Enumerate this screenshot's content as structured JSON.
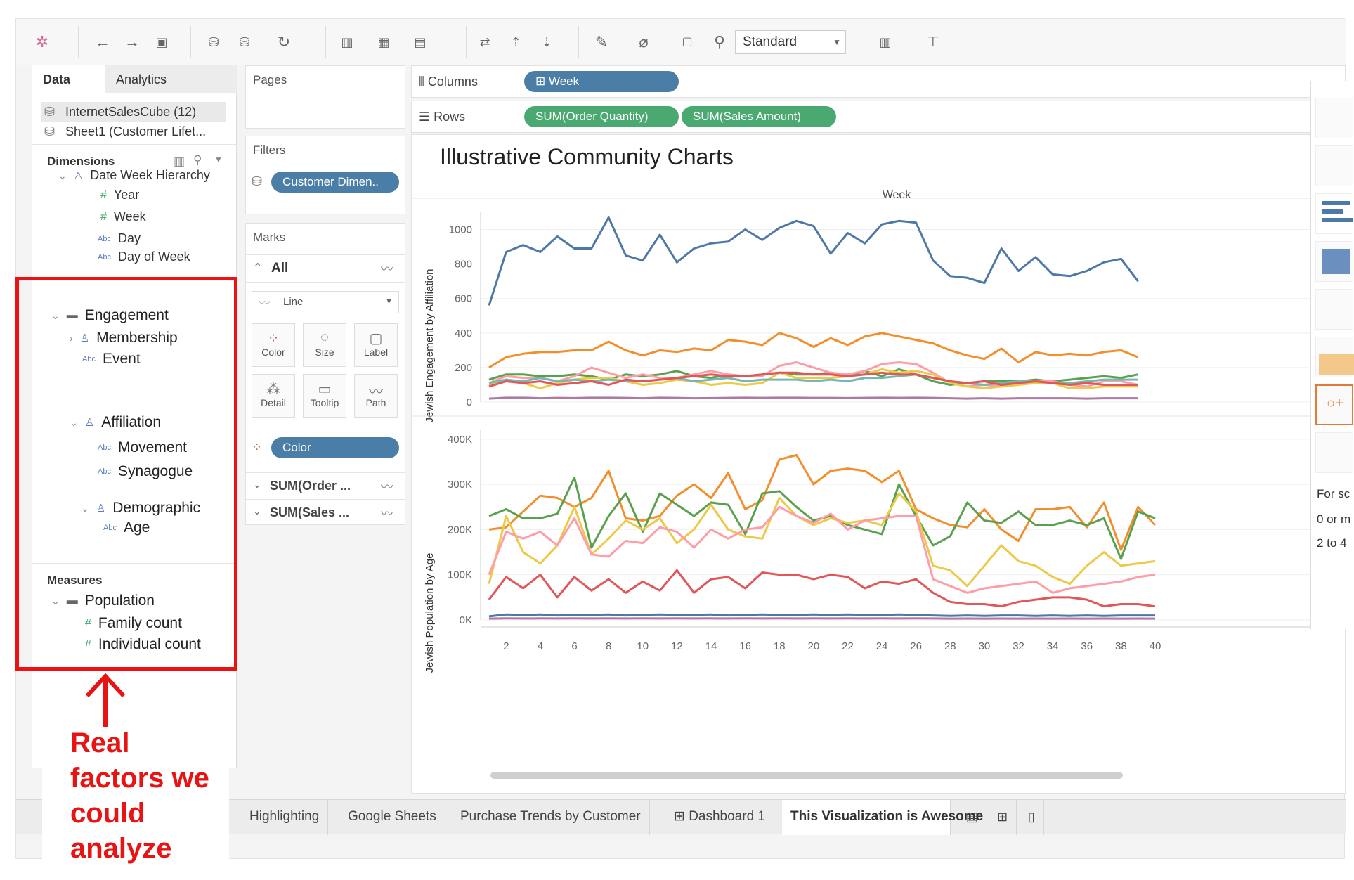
{
  "toolbar": {
    "view_size_select": "Standard"
  },
  "data_pane": {
    "tabs": [
      "Data",
      "Analytics"
    ],
    "data_sources": [
      "InternetSalesCube (12)",
      "Sheet1 (Customer Lifet..."
    ],
    "dimensions_header": "Dimensions",
    "dimension_fields": [
      "Date Week Hierarchy",
      "Year",
      "Week",
      "Day",
      "Day of Week"
    ],
    "icon_abc": "Abc",
    "highlighted": {
      "engagement": "Engagement",
      "membership": "Membership",
      "event": "Event",
      "affiliation": "Affiliation",
      "movement": "Movement",
      "synagogue": "Synagogue",
      "demographic": "Demographic",
      "age": "Age"
    },
    "measures_header": "Measures",
    "measures": {
      "population": "Population",
      "family_count": "Family count",
      "individual_count": "Individual count"
    }
  },
  "shelves": {
    "pages_label": "Pages",
    "filters_label": "Filters",
    "filter_pill": "Customer Dimen..",
    "marks_label": "Marks",
    "marks_all": "All",
    "mark_type": "Line",
    "mark_buttons": [
      "Color",
      "Size",
      "Label",
      "Detail",
      "Tooltip",
      "Path"
    ],
    "color_pill": "Color",
    "measure_cards": [
      "SUM(Order ...",
      "SUM(Sales ..."
    ],
    "columns_label": "Columns",
    "columns_pill": "Week",
    "rows_label": "Rows",
    "rows_pills": [
      "SUM(Order Quantity)",
      "SUM(Sales Amount)"
    ]
  },
  "right_panel": {
    "text_lines": [
      "For sc",
      "0 or m",
      "2 to 4"
    ]
  },
  "bottom_tabs": [
    "Highlighting",
    "Google Sheets",
    "Purchase Trends by Customer",
    "Dashboard 1",
    "This Visualization is Awesome"
  ],
  "annotation": {
    "text": "Real factors we could analyze",
    "color": "#e81313"
  },
  "chart_data": [
    {
      "type": "line",
      "title": "Illustrative Community Charts",
      "column_header": "Week",
      "ylabel": "Jewish Engagement by Affiliation",
      "ylim": [
        0,
        1100
      ],
      "yticks": [
        "0",
        "200",
        "400",
        "600",
        "800",
        "1000"
      ],
      "x": [
        1,
        2,
        3,
        4,
        5,
        6,
        7,
        8,
        9,
        10,
        11,
        12,
        13,
        14,
        15,
        16,
        17,
        18,
        19,
        20,
        21,
        22,
        23,
        24,
        25,
        26,
        27,
        28,
        29,
        30,
        31,
        32,
        33,
        34,
        35,
        36,
        37,
        38,
        39
      ],
      "series": [
        {
          "color": "#4e79a7",
          "values": [
            560,
            870,
            910,
            870,
            960,
            890,
            890,
            1070,
            850,
            820,
            970,
            810,
            890,
            920,
            930,
            1000,
            940,
            1010,
            1050,
            1020,
            860,
            980,
            920,
            1030,
            1050,
            1040,
            820,
            730,
            720,
            690,
            890,
            760,
            840,
            740,
            730,
            760,
            810,
            830,
            700
          ]
        },
        {
          "color": "#f28e2b",
          "values": [
            200,
            260,
            280,
            290,
            290,
            300,
            300,
            350,
            300,
            270,
            300,
            290,
            310,
            300,
            360,
            350,
            330,
            400,
            370,
            320,
            370,
            330,
            380,
            400,
            380,
            360,
            340,
            300,
            270,
            250,
            310,
            230,
            290,
            270,
            280,
            270,
            290,
            300,
            260
          ]
        },
        {
          "color": "#59a14f",
          "values": [
            130,
            160,
            160,
            150,
            150,
            160,
            150,
            130,
            160,
            150,
            160,
            180,
            150,
            140,
            160,
            150,
            160,
            170,
            160,
            160,
            170,
            150,
            180,
            150,
            190,
            160,
            120,
            100,
            110,
            120,
            120,
            120,
            130,
            120,
            130,
            140,
            150,
            140,
            160
          ]
        },
        {
          "color": "#ff9da7",
          "values": [
            110,
            150,
            140,
            140,
            120,
            150,
            200,
            170,
            140,
            160,
            140,
            140,
            160,
            180,
            160,
            150,
            150,
            210,
            230,
            200,
            170,
            160,
            180,
            220,
            230,
            220,
            170,
            110,
            90,
            100,
            90,
            110,
            120,
            120,
            100,
            90,
            120,
            120,
            100
          ]
        },
        {
          "color": "#edc948",
          "values": [
            100,
            130,
            110,
            80,
            110,
            130,
            140,
            140,
            120,
            100,
            110,
            130,
            120,
            100,
            110,
            100,
            110,
            170,
            140,
            140,
            140,
            150,
            160,
            190,
            170,
            180,
            160,
            110,
            90,
            80,
            90,
            100,
            110,
            110,
            80,
            80,
            90,
            90,
            90
          ]
        },
        {
          "color": "#76b7b2",
          "values": [
            110,
            130,
            120,
            140,
            120,
            130,
            120,
            130,
            120,
            120,
            130,
            140,
            120,
            130,
            140,
            120,
            130,
            130,
            130,
            120,
            130,
            120,
            140,
            140,
            150,
            160,
            140,
            120,
            110,
            100,
            110,
            120,
            120,
            110,
            110,
            120,
            130,
            130,
            130
          ]
        },
        {
          "color": "#e15759",
          "values": [
            90,
            120,
            110,
            120,
            100,
            110,
            120,
            100,
            130,
            120,
            130,
            140,
            150,
            160,
            150,
            150,
            160,
            170,
            170,
            160,
            160,
            150,
            160,
            170,
            160,
            160,
            140,
            120,
            110,
            120,
            100,
            110,
            120,
            110,
            100,
            110,
            100,
            100,
            100
          ]
        },
        {
          "color": "#af7aa1",
          "values": [
            20,
            25,
            25,
            22,
            24,
            23,
            25,
            25,
            24,
            22,
            25,
            24,
            22,
            23,
            24,
            25,
            24,
            25,
            25,
            24,
            24,
            23,
            24,
            25,
            24,
            25,
            24,
            22,
            20,
            22,
            20,
            22,
            22,
            22,
            22,
            20,
            22,
            22,
            22
          ]
        }
      ]
    },
    {
      "type": "line",
      "xlabel": "",
      "ylabel": "Jewish Population by Age",
      "ylim": [
        0,
        420000
      ],
      "yticks": [
        "0K",
        "100K",
        "200K",
        "300K",
        "400K"
      ],
      "xticks": [
        "2",
        "4",
        "6",
        "8",
        "10",
        "12",
        "14",
        "16",
        "18",
        "20",
        "22",
        "24",
        "26",
        "28",
        "30",
        "32",
        "34",
        "36",
        "38",
        "40"
      ],
      "x": [
        1,
        2,
        3,
        4,
        5,
        6,
        7,
        8,
        9,
        10,
        11,
        12,
        13,
        14,
        15,
        16,
        17,
        18,
        19,
        20,
        21,
        22,
        23,
        24,
        25,
        26,
        27,
        28,
        29,
        30,
        31,
        32,
        33,
        34,
        35,
        36,
        37,
        38,
        39,
        40
      ],
      "series": [
        {
          "color": "#f28e2b",
          "values": [
            200000,
            205000,
            240000,
            275000,
            270000,
            250000,
            270000,
            330000,
            225000,
            220000,
            230000,
            275000,
            300000,
            270000,
            325000,
            245000,
            265000,
            355000,
            365000,
            300000,
            330000,
            335000,
            330000,
            305000,
            330000,
            245000,
            225000,
            210000,
            205000,
            245000,
            200000,
            175000,
            245000,
            245000,
            250000,
            205000,
            260000,
            155000,
            250000,
            210000
          ]
        },
        {
          "color": "#59a14f",
          "values": [
            230000,
            245000,
            225000,
            225000,
            235000,
            315000,
            160000,
            230000,
            280000,
            195000,
            280000,
            255000,
            230000,
            260000,
            255000,
            190000,
            280000,
            285000,
            250000,
            220000,
            230000,
            210000,
            200000,
            190000,
            300000,
            230000,
            165000,
            185000,
            260000,
            220000,
            215000,
            240000,
            210000,
            210000,
            220000,
            210000,
            225000,
            135000,
            240000,
            225000
          ]
        },
        {
          "color": "#edc948",
          "values": [
            80000,
            230000,
            150000,
            125000,
            165000,
            250000,
            145000,
            180000,
            220000,
            200000,
            225000,
            170000,
            200000,
            255000,
            200000,
            185000,
            180000,
            270000,
            230000,
            210000,
            225000,
            215000,
            220000,
            210000,
            280000,
            240000,
            120000,
            110000,
            75000,
            120000,
            165000,
            130000,
            120000,
            95000,
            80000,
            120000,
            150000,
            120000,
            125000,
            130000
          ]
        },
        {
          "color": "#ff9da7",
          "values": [
            100000,
            195000,
            180000,
            195000,
            165000,
            225000,
            145000,
            140000,
            175000,
            170000,
            205000,
            195000,
            160000,
            200000,
            180000,
            200000,
            205000,
            250000,
            230000,
            215000,
            235000,
            200000,
            220000,
            225000,
            230000,
            230000,
            90000,
            75000,
            60000,
            70000,
            75000,
            80000,
            85000,
            60000,
            70000,
            75000,
            80000,
            85000,
            95000,
            100000
          ]
        },
        {
          "color": "#e15759",
          "values": [
            45000,
            95000,
            70000,
            100000,
            50000,
            95000,
            65000,
            90000,
            60000,
            85000,
            65000,
            110000,
            60000,
            90000,
            95000,
            70000,
            105000,
            100000,
            100000,
            90000,
            100000,
            95000,
            70000,
            85000,
            80000,
            90000,
            60000,
            40000,
            35000,
            35000,
            30000,
            40000,
            45000,
            50000,
            50000,
            45000,
            30000,
            35000,
            35000,
            30000
          ]
        },
        {
          "color": "#4e79a7",
          "values": [
            8000,
            12000,
            11000,
            12000,
            10000,
            11000,
            11000,
            12000,
            10000,
            11000,
            12000,
            11000,
            11000,
            12000,
            10000,
            11000,
            12000,
            11000,
            11000,
            12000,
            11000,
            12000,
            11000,
            11000,
            12000,
            11000,
            10000,
            9000,
            10000,
            9000,
            10000,
            10000,
            9000,
            10000,
            9000,
            10000,
            9000,
            10000,
            10000,
            10000
          ]
        },
        {
          "color": "#af7aa1",
          "values": [
            3000,
            3500,
            3200,
            3400,
            3300,
            3500,
            3200,
            3400,
            3300,
            3500,
            3200,
            3400,
            3300,
            3500,
            3200,
            3400,
            3300,
            3500,
            3200,
            3400,
            3300,
            3500,
            3200,
            3400,
            3300,
            3500,
            3200,
            3000,
            3100,
            3000,
            3100,
            3000,
            3100,
            3000,
            3100,
            3000,
            3100,
            3000,
            3100,
            3000
          ]
        }
      ]
    }
  ]
}
